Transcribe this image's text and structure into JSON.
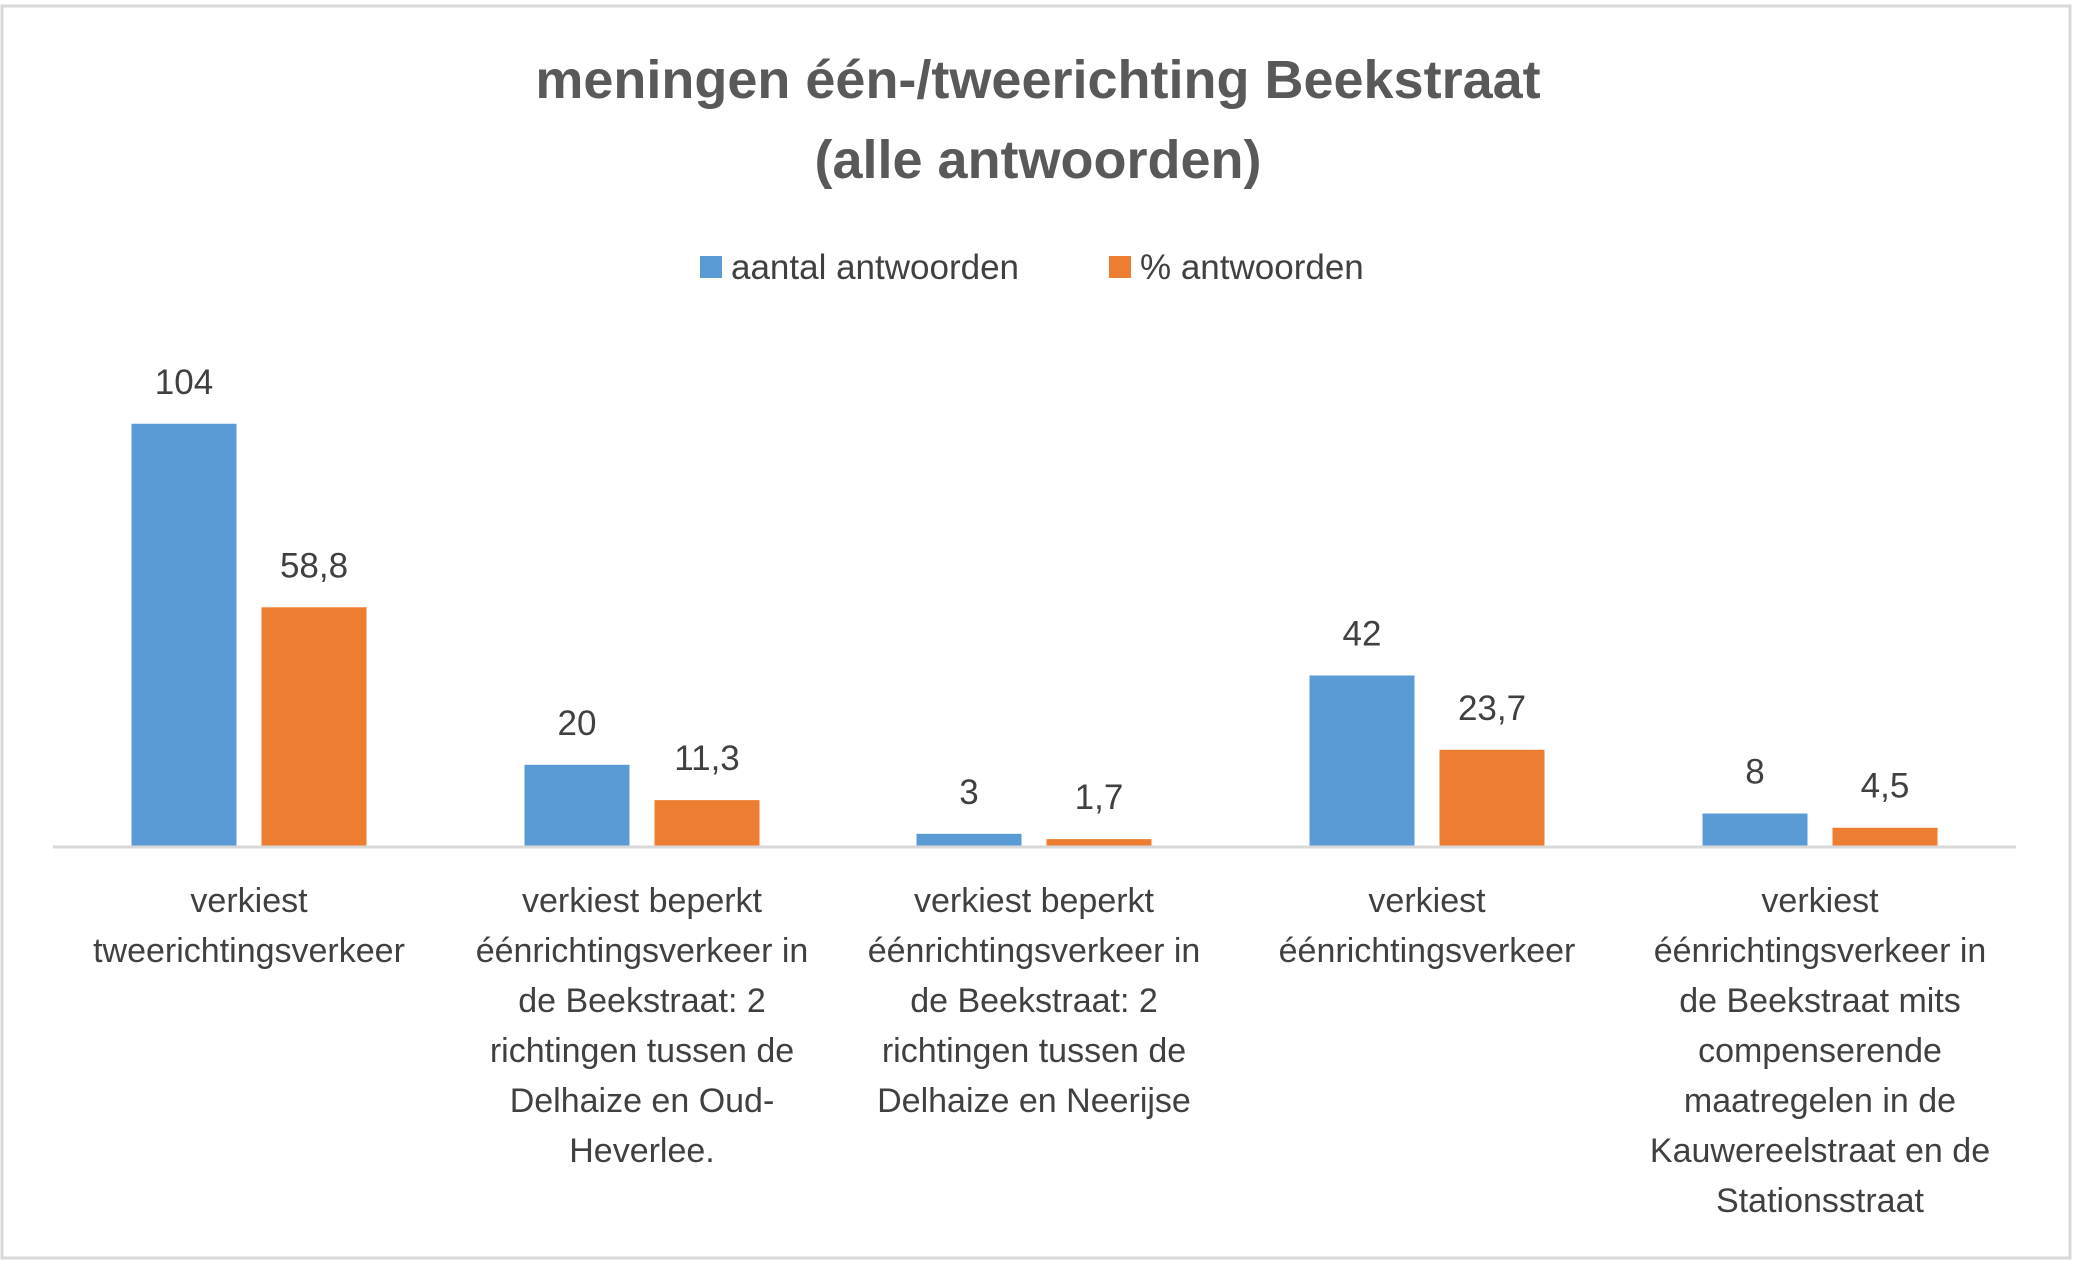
{
  "chart_data": {
    "type": "bar",
    "title": [
      "meningen één-/tweerichting  Beekstraat",
      "(alle antwoorden)"
    ],
    "xlabel": "",
    "ylabel": "",
    "ylim": [
      0,
      104
    ],
    "grid": false,
    "legend_position": "top",
    "categories": [
      [
        "verkiest",
        "tweerichtingsverkeer"
      ],
      [
        "verkiest beperkt",
        "éénrichtingsverkeer in",
        "de Beekstraat: 2",
        "richtingen tussen de",
        "Delhaize en Oud-",
        "Heverlee."
      ],
      [
        "verkiest beperkt",
        "éénrichtingsverkeer in",
        "de Beekstraat: 2",
        "richtingen tussen de",
        "Delhaize en Neerijse"
      ],
      [
        "verkiest",
        "éénrichtingsverkeer"
      ],
      [
        "verkiest",
        "éénrichtingsverkeer in",
        "de Beekstraat mits",
        "compenserende",
        "maatregelen  in de",
        "Kauwereelstraat en de",
        "Stationsstraat"
      ]
    ],
    "series": [
      {
        "name": "aantal antwoorden",
        "color": "#5B9BD5",
        "values": [
          104,
          20,
          3,
          42,
          8
        ],
        "labels": [
          "104",
          "20",
          "3",
          "42",
          "8"
        ]
      },
      {
        "name": "% antwoorden",
        "color": "#ED7D31",
        "values": [
          58.8,
          11.3,
          1.7,
          23.7,
          4.5
        ],
        "labels": [
          "58,8",
          "11,3",
          "1,7",
          "23,7",
          "4,5"
        ]
      }
    ]
  }
}
